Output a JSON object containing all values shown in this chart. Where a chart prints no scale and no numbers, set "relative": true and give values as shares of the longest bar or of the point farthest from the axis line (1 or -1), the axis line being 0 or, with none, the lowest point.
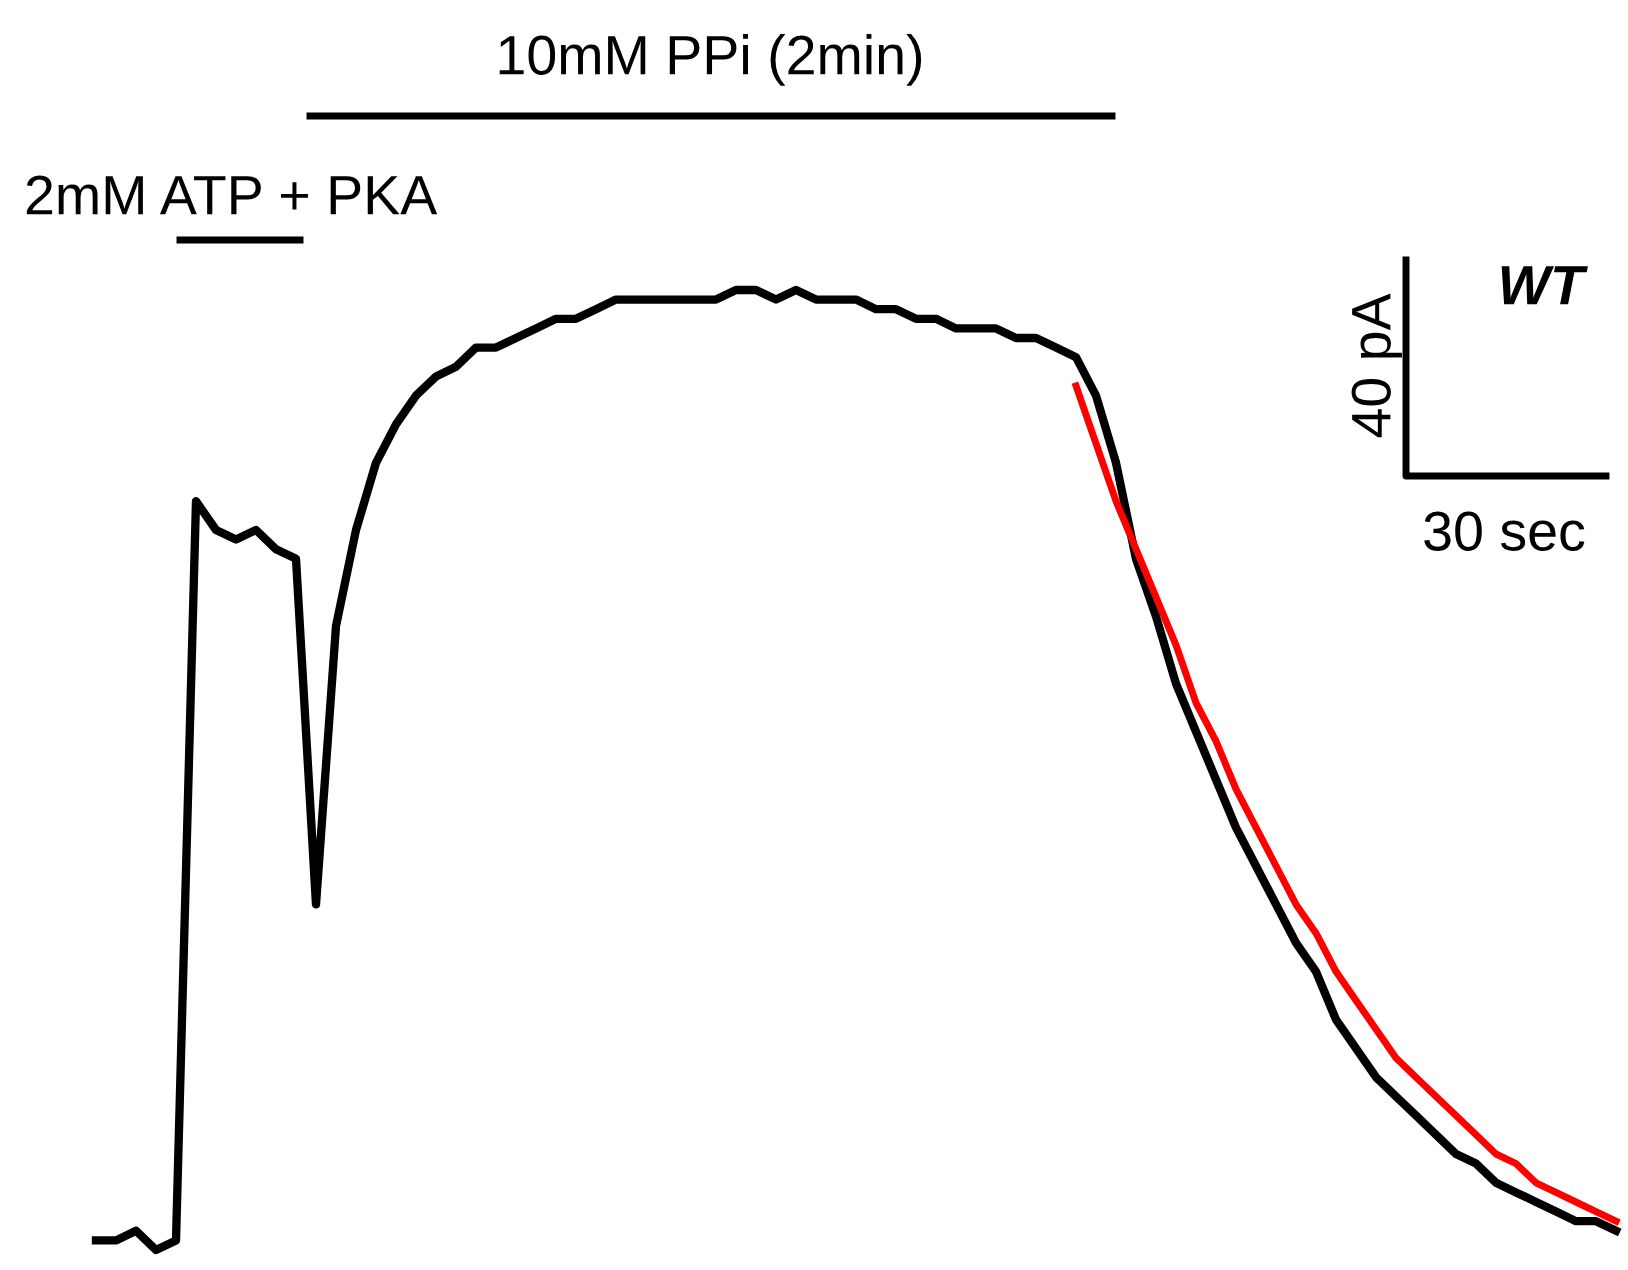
{
  "chart_data": {
    "type": "line",
    "relative": true,
    "categories": [
      null,
      null,
      null,
      null,
      null,
      null,
      null,
      null,
      null,
      null,
      null,
      null,
      null,
      null,
      null,
      null,
      null,
      null,
      null,
      null,
      null,
      null,
      null,
      null,
      null,
      null,
      null,
      null,
      null,
      null,
      null,
      null,
      null,
      null,
      null,
      null,
      null,
      null,
      null,
      null,
      null,
      null,
      null,
      null,
      null,
      null,
      null,
      null,
      null,
      null,
      null,
      null,
      null,
      null,
      null,
      null,
      null,
      null,
      null,
      null,
      null,
      null,
      null,
      null,
      null,
      null,
      null,
      null,
      null,
      null,
      null,
      null,
      null,
      null,
      null,
      null,
      null
    ],
    "series": [
      {
        "color": "#000000",
        "values": [
          0.01,
          0.01,
          0.02,
          0.0,
          0.01,
          0.78,
          0.75,
          0.74,
          0.75,
          0.73,
          0.72,
          0.36,
          0.65,
          0.75,
          0.82,
          0.86,
          0.89,
          0.91,
          0.92,
          0.94,
          0.94,
          0.95,
          0.96,
          0.97,
          0.97,
          0.98,
          0.99,
          0.99,
          0.99,
          0.99,
          0.99,
          0.99,
          1.0,
          1.0,
          0.99,
          1.0,
          0.99,
          0.99,
          0.99,
          0.98,
          0.98,
          0.97,
          0.97,
          0.96,
          0.96,
          0.96,
          0.95,
          0.95,
          0.94,
          0.93,
          0.89,
          0.82,
          0.72,
          0.66,
          0.59,
          0.54,
          0.49,
          0.44,
          0.4,
          0.36,
          0.32,
          0.29,
          0.24,
          0.21,
          0.18,
          0.16,
          0.14,
          0.12,
          0.1,
          0.09,
          0.07,
          0.06,
          0.05,
          0.04,
          0.03,
          0.03,
          0.02
        ]
      },
      {
        "color": "#ff0000",
        "values": [
          null,
          null,
          null,
          null,
          null,
          null,
          null,
          null,
          null,
          null,
          null,
          null,
          null,
          null,
          null,
          null,
          null,
          null,
          null,
          null,
          null,
          null,
          null,
          null,
          null,
          null,
          null,
          null,
          null,
          null,
          null,
          null,
          null,
          null,
          null,
          null,
          null,
          null,
          null,
          null,
          null,
          null,
          null,
          null,
          null,
          null,
          null,
          null,
          null,
          0.9,
          0.84,
          0.78,
          0.73,
          0.68,
          0.63,
          0.57,
          0.53,
          0.48,
          0.44,
          0.4,
          0.36,
          0.33,
          0.29,
          0.26,
          0.23,
          0.2,
          0.18,
          0.16,
          0.14,
          0.12,
          0.1,
          0.09,
          0.07,
          0.06,
          0.05,
          0.04,
          0.03
        ]
      }
    ],
    "annotations": [
      "10mM PPi (2min)",
      "2mM ATP + PKA",
      "40 pA",
      "30 sec",
      "WT"
    ],
    "legend": false,
    "marker": "none",
    "line_style": "solid"
  }
}
